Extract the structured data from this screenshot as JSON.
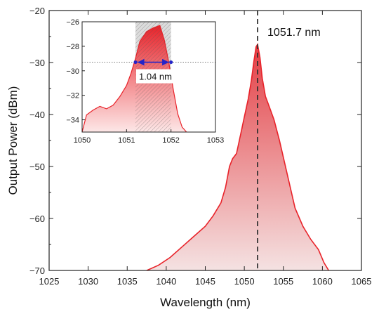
{
  "chart_data": [
    {
      "type": "area",
      "xlabel": "Wavelength (nm)",
      "ylabel": "Output Power (dBm)",
      "xlim": [
        1025,
        1065
      ],
      "ylim": [
        -70,
        -20
      ],
      "xticks": [
        1025,
        1030,
        1035,
        1040,
        1045,
        1050,
        1055,
        1060,
        1065
      ],
      "yticks": [
        -70,
        -60,
        -50,
        -40,
        -30,
        -20
      ],
      "peak_annotation": {
        "x": 1051.7,
        "label": "1051.7 nm"
      },
      "series": [
        {
          "x": [
            1037.5,
            1039,
            1040.5,
            1042,
            1043.5,
            1045,
            1046,
            1047,
            1047.6,
            1048.1,
            1048.5,
            1049,
            1049.5,
            1050,
            1050.5,
            1050.9,
            1051.2,
            1051.5,
            1051.7,
            1052,
            1052.3,
            1052.7,
            1053.2,
            1053.8,
            1054.5,
            1055.5,
            1056.5,
            1057.5,
            1058.5,
            1059.5,
            1060.2,
            1060.8
          ],
          "y": [
            -70,
            -69,
            -67.5,
            -65.5,
            -63.5,
            -61.5,
            -59.5,
            -57,
            -54,
            -50,
            -48.5,
            -47.5,
            -44,
            -40.5,
            -37,
            -33.5,
            -30,
            -27,
            -26.5,
            -29,
            -33,
            -36.5,
            -38.5,
            -41,
            -45,
            -51.5,
            -58,
            -61.5,
            -64,
            -66,
            -68.5,
            -70
          ]
        }
      ],
      "colors": {
        "line": "#e8232a",
        "fill_dark": "#e8232a",
        "fill_light": "#fde7e7",
        "marker": "#333333"
      }
    },
    {
      "type": "area",
      "xlim": [
        1050,
        1053
      ],
      "ylim": [
        -35,
        -26
      ],
      "xticks": [
        1050,
        1051,
        1052,
        1053
      ],
      "yticks": [
        -34,
        -32,
        -30,
        -28,
        -26
      ],
      "highlight_range": [
        1051.2,
        1052.0
      ],
      "fwhm_level": -29.3,
      "fwhm_label": "1.04 nm",
      "series": [
        {
          "x": [
            1050.0,
            1050.1,
            1050.25,
            1050.4,
            1050.55,
            1050.7,
            1050.85,
            1051.0,
            1051.1,
            1051.2,
            1051.3,
            1051.45,
            1051.6,
            1051.75,
            1051.85,
            1051.95,
            1052.05,
            1052.15,
            1052.25,
            1052.35
          ],
          "y": [
            -35,
            -33.6,
            -33.2,
            -32.9,
            -33.1,
            -32.8,
            -32.1,
            -31.2,
            -30.2,
            -29.0,
            -27.6,
            -26.8,
            -26.5,
            -26.3,
            -27.5,
            -29.3,
            -31.5,
            -33.5,
            -34.6,
            -35
          ]
        }
      ],
      "colors": {
        "arrow": "#2424c8",
        "fill_dark": "#e8232a",
        "fill_light": "#fde7e7",
        "band": "#9a9a9a"
      }
    }
  ]
}
